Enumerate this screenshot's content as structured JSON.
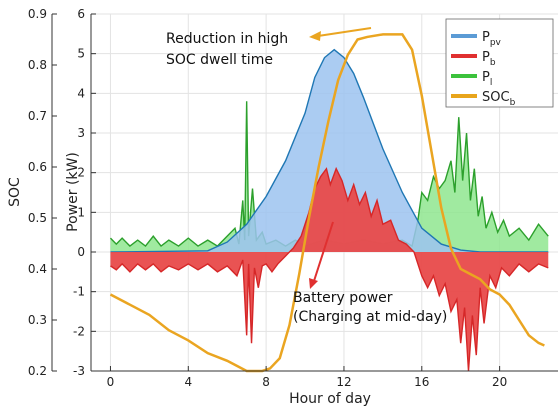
{
  "chart_data": {
    "type": "area",
    "xlabel": "Hour of day",
    "ylabel_left": "SOC",
    "ylabel_right": "Power (kW)",
    "xlim": [
      -1,
      23
    ],
    "ylim_power": [
      -3,
      6
    ],
    "ylim_soc": [
      0.2,
      0.9
    ],
    "x_ticks": [
      "0",
      "4",
      "8",
      "12",
      "16",
      "20"
    ],
    "power_ticks": [
      "-3",
      "-2",
      "-1",
      "0",
      "1",
      "2",
      "3",
      "4",
      "5",
      "6"
    ],
    "soc_ticks": [
      "0.2",
      "0.3",
      "0.4",
      "0.5",
      "0.6",
      "0.7",
      "0.8",
      "0.9"
    ],
    "grid": true,
    "legend_position": "top-right",
    "legend": [
      {
        "main": "P",
        "sub": "pv",
        "color": "#5b9bd5"
      },
      {
        "main": "P",
        "sub": "b",
        "color": "#e03030"
      },
      {
        "main": "P",
        "sub": "l",
        "color": "#3cc23c"
      },
      {
        "main": "SOC",
        "sub": "b",
        "color": "#e8a51c"
      }
    ],
    "annotations": [
      {
        "lines": [
          "Reduction in high",
          "SOC  dwell time"
        ]
      },
      {
        "lines": [
          "Battery power",
          "(Charging at mid-day)"
        ]
      }
    ],
    "series": [
      {
        "name": "P_pv",
        "color": "#1f77b4",
        "fill": "#9cc3f0",
        "points": [
          [
            0,
            0
          ],
          [
            5,
            0.03
          ],
          [
            6,
            0.25
          ],
          [
            7,
            0.7
          ],
          [
            8,
            1.4
          ],
          [
            9,
            2.3
          ],
          [
            10,
            3.5
          ],
          [
            10.5,
            4.4
          ],
          [
            11,
            4.9
          ],
          [
            11.5,
            5.1
          ],
          [
            12,
            4.9
          ],
          [
            12.5,
            4.5
          ],
          [
            13,
            3.9
          ],
          [
            14,
            2.6
          ],
          [
            15,
            1.5
          ],
          [
            16,
            0.6
          ],
          [
            17,
            0.2
          ],
          [
            18,
            0.05
          ],
          [
            19,
            0
          ],
          [
            22.5,
            0
          ]
        ]
      },
      {
        "name": "P_b",
        "color": "#d62728",
        "fill": "#e84a4a",
        "points": [
          [
            0,
            -0.35
          ],
          [
            0.3,
            -0.45
          ],
          [
            0.6,
            -0.3
          ],
          [
            1,
            -0.5
          ],
          [
            1.4,
            -0.3
          ],
          [
            1.8,
            -0.45
          ],
          [
            2.2,
            -0.3
          ],
          [
            2.6,
            -0.5
          ],
          [
            3,
            -0.35
          ],
          [
            3.5,
            -0.45
          ],
          [
            4,
            -0.3
          ],
          [
            4.5,
            -0.45
          ],
          [
            5,
            -0.3
          ],
          [
            5.5,
            -0.5
          ],
          [
            6,
            -0.35
          ],
          [
            6.5,
            -0.6
          ],
          [
            6.8,
            -0.2
          ],
          [
            7,
            -2.1
          ],
          [
            7.1,
            -0.3
          ],
          [
            7.25,
            -2.3
          ],
          [
            7.4,
            -0.4
          ],
          [
            7.6,
            -0.9
          ],
          [
            7.8,
            -0.35
          ],
          [
            8,
            -0.3
          ],
          [
            8.3,
            -0.5
          ],
          [
            8.6,
            -0.3
          ],
          [
            9,
            -0.1
          ],
          [
            9.4,
            0.1
          ],
          [
            9.8,
            0.4
          ],
          [
            10.2,
            1.0
          ],
          [
            10.5,
            1.6
          ],
          [
            10.8,
            1.9
          ],
          [
            11.1,
            2.1
          ],
          [
            11.3,
            1.7
          ],
          [
            11.6,
            2.1
          ],
          [
            11.9,
            1.8
          ],
          [
            12.2,
            1.3
          ],
          [
            12.5,
            1.7
          ],
          [
            12.8,
            1.2
          ],
          [
            13.1,
            1.5
          ],
          [
            13.4,
            0.9
          ],
          [
            13.7,
            1.3
          ],
          [
            14,
            0.7
          ],
          [
            14.4,
            0.8
          ],
          [
            14.8,
            0.3
          ],
          [
            15.2,
            0.2
          ],
          [
            15.6,
            0
          ],
          [
            16,
            -0.6
          ],
          [
            16.3,
            -0.9
          ],
          [
            16.6,
            -0.6
          ],
          [
            16.9,
            -1.1
          ],
          [
            17.2,
            -0.8
          ],
          [
            17.5,
            -1.5
          ],
          [
            17.8,
            -1.2
          ],
          [
            18,
            -2.3
          ],
          [
            18.2,
            -1.4
          ],
          [
            18.4,
            -3.0
          ],
          [
            18.6,
            -1.6
          ],
          [
            18.8,
            -2.6
          ],
          [
            19,
            -0.9
          ],
          [
            19.2,
            -1.8
          ],
          [
            19.5,
            -0.6
          ],
          [
            19.8,
            -0.9
          ],
          [
            20.1,
            -0.4
          ],
          [
            20.5,
            -0.6
          ],
          [
            21,
            -0.3
          ],
          [
            21.5,
            -0.5
          ],
          [
            22,
            -0.3
          ],
          [
            22.5,
            -0.4
          ]
        ]
      },
      {
        "name": "P_l",
        "color": "#2ca02c",
        "fill": "#8fe68f",
        "points": [
          [
            0,
            0.35
          ],
          [
            0.3,
            0.2
          ],
          [
            0.6,
            0.35
          ],
          [
            1,
            0.15
          ],
          [
            1.4,
            0.3
          ],
          [
            1.8,
            0.15
          ],
          [
            2.2,
            0.4
          ],
          [
            2.6,
            0.15
          ],
          [
            3,
            0.3
          ],
          [
            3.5,
            0.15
          ],
          [
            4,
            0.35
          ],
          [
            4.5,
            0.15
          ],
          [
            5,
            0.3
          ],
          [
            5.5,
            0.15
          ],
          [
            6,
            0.4
          ],
          [
            6.4,
            0.6
          ],
          [
            6.6,
            0.2
          ],
          [
            6.8,
            1.3
          ],
          [
            6.9,
            0.3
          ],
          [
            7.0,
            3.8
          ],
          [
            7.1,
            0.4
          ],
          [
            7.3,
            1.6
          ],
          [
            7.5,
            0.3
          ],
          [
            7.8,
            0.5
          ],
          [
            8,
            0.2
          ],
          [
            8.5,
            0.3
          ],
          [
            9,
            0.15
          ],
          [
            9.5,
            0.3
          ],
          [
            10,
            0.15
          ],
          [
            11,
            0.3
          ],
          [
            12,
            0.2
          ],
          [
            13,
            0.3
          ],
          [
            14,
            0.2
          ],
          [
            15,
            0.3
          ],
          [
            15.5,
            0.15
          ],
          [
            15.8,
            0.8
          ],
          [
            16,
            1.5
          ],
          [
            16.3,
            1.3
          ],
          [
            16.6,
            1.9
          ],
          [
            16.9,
            1.6
          ],
          [
            17.2,
            1.8
          ],
          [
            17.5,
            2.3
          ],
          [
            17.7,
            1.5
          ],
          [
            17.9,
            3.4
          ],
          [
            18.1,
            1.8
          ],
          [
            18.3,
            3.0
          ],
          [
            18.5,
            1.3
          ],
          [
            18.7,
            2.1
          ],
          [
            18.9,
            0.9
          ],
          [
            19.1,
            1.4
          ],
          [
            19.3,
            0.6
          ],
          [
            19.6,
            1.0
          ],
          [
            19.9,
            0.5
          ],
          [
            20.2,
            0.8
          ],
          [
            20.5,
            0.4
          ],
          [
            21,
            0.6
          ],
          [
            21.5,
            0.3
          ],
          [
            22,
            0.7
          ],
          [
            22.5,
            0.4
          ]
        ]
      },
      {
        "name": "SOC_b",
        "color": "#eaa521",
        "axis": "soc",
        "points": [
          [
            0,
            0.35
          ],
          [
            1,
            0.33
          ],
          [
            2,
            0.31
          ],
          [
            3,
            0.28
          ],
          [
            4,
            0.26
          ],
          [
            5,
            0.235
          ],
          [
            6,
            0.22
          ],
          [
            6.5,
            0.21
          ],
          [
            7,
            0.2
          ],
          [
            7.8,
            0.2
          ],
          [
            8.2,
            0.205
          ],
          [
            8.7,
            0.225
          ],
          [
            9.2,
            0.29
          ],
          [
            9.7,
            0.39
          ],
          [
            10.2,
            0.5
          ],
          [
            10.7,
            0.6
          ],
          [
            11.2,
            0.69
          ],
          [
            11.7,
            0.77
          ],
          [
            12.2,
            0.82
          ],
          [
            12.7,
            0.85
          ],
          [
            13.2,
            0.855
          ],
          [
            14,
            0.86
          ],
          [
            15,
            0.86
          ],
          [
            15.5,
            0.83
          ],
          [
            16,
            0.74
          ],
          [
            16.5,
            0.63
          ],
          [
            17,
            0.52
          ],
          [
            17.5,
            0.44
          ],
          [
            18,
            0.4
          ],
          [
            18.5,
            0.39
          ],
          [
            19,
            0.38
          ],
          [
            19.5,
            0.36
          ],
          [
            20,
            0.35
          ],
          [
            20.5,
            0.33
          ],
          [
            21,
            0.3
          ],
          [
            21.5,
            0.27
          ],
          [
            22,
            0.255
          ],
          [
            22.3,
            0.25
          ]
        ]
      }
    ]
  }
}
